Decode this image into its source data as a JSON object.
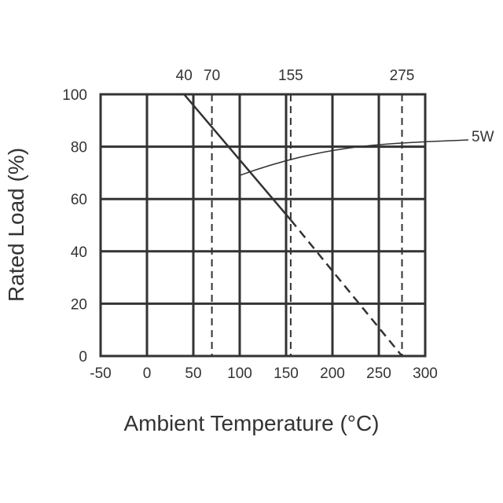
{
  "chart_data": {
    "type": "line",
    "xlabel": "Ambient Temperature (°C)",
    "ylabel": "Rated Load (%)",
    "xlim": [
      -50,
      300
    ],
    "ylim": [
      0,
      100
    ],
    "x_ticks": [
      "-50",
      "0",
      "50",
      "100",
      "150",
      "200",
      "250",
      "300"
    ],
    "y_ticks": [
      "0",
      "20",
      "40",
      "60",
      "80",
      "100"
    ],
    "x_tick_values": [
      -50,
      0,
      50,
      100,
      150,
      200,
      250,
      300
    ],
    "y_tick_values": [
      0,
      20,
      40,
      60,
      80,
      100
    ],
    "top_markers": [
      {
        "label": "40",
        "value": 40,
        "dashed_line": false
      },
      {
        "label": "70",
        "value": 70,
        "dashed_line": true
      },
      {
        "label": "155",
        "value": 155,
        "dashed_line": true
      },
      {
        "label": "275",
        "value": 275,
        "dashed_line": true
      }
    ],
    "series": [
      {
        "name": "5W",
        "solid": {
          "x": [
            40,
            155
          ],
          "y": [
            100,
            52
          ]
        },
        "dashed": {
          "x": [
            155,
            275
          ],
          "y": [
            52,
            0
          ]
        }
      }
    ],
    "callout_target": {
      "x": 100,
      "y": 69
    },
    "grid": true
  }
}
